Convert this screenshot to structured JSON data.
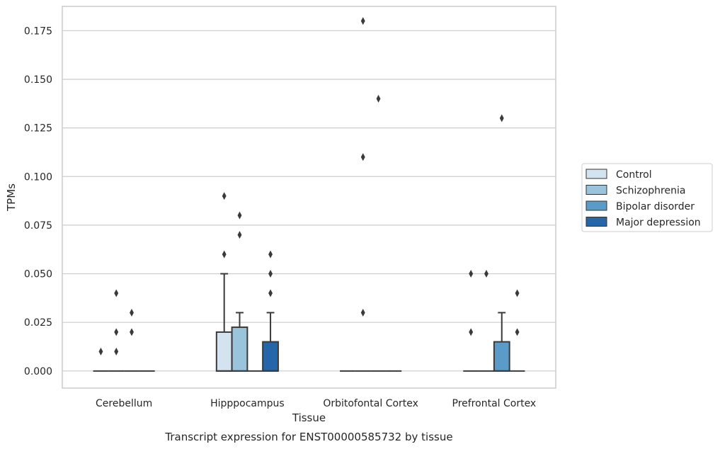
{
  "chart_data": {
    "type": "box",
    "caption": "Transcript expression for ENST00000585732 by tissue",
    "xlabel": "Tissue",
    "ylabel": "TPMs",
    "ylim": [
      -0.0088,
      0.1875
    ],
    "yticks": [
      0.0,
      0.025,
      0.05,
      0.075,
      0.1,
      0.125,
      0.15,
      0.175
    ],
    "ytick_labels": [
      "0.000",
      "0.025",
      "0.050",
      "0.075",
      "0.100",
      "0.125",
      "0.150",
      "0.175"
    ],
    "grid": "horizontal",
    "legend_position": "right",
    "categories": [
      "Cerebellum",
      "Hipppocampus",
      "Orbitofontal Cortex",
      "Prefrontal Cortex"
    ],
    "series": [
      {
        "name": "Control",
        "color": "#d4e3f0",
        "boxes": [
          {
            "q1": 0,
            "median": 0,
            "q3": 0,
            "whislo": 0,
            "whishi": 0,
            "fliers": [
              0.01
            ]
          },
          {
            "q1": 0,
            "median": 0,
            "q3": 0.02,
            "whislo": 0,
            "whishi": 0.05,
            "fliers": [
              0.06,
              0.09
            ]
          },
          {
            "q1": 0,
            "median": 0,
            "q3": 0,
            "whislo": 0,
            "whishi": 0,
            "fliers": []
          },
          {
            "q1": 0,
            "median": 0,
            "q3": 0,
            "whislo": 0,
            "whishi": 0,
            "fliers": [
              0.02,
              0.05
            ]
          }
        ]
      },
      {
        "name": "Schizophrenia",
        "color": "#9ac3dc",
        "boxes": [
          {
            "q1": 0,
            "median": 0,
            "q3": 0,
            "whislo": 0,
            "whishi": 0,
            "fliers": [
              0.01,
              0.02,
              0.04
            ]
          },
          {
            "q1": 0,
            "median": 0,
            "q3": 0.0225,
            "whislo": 0,
            "whishi": 0.03,
            "fliers": [
              0.07,
              0.08
            ]
          },
          {
            "q1": 0,
            "median": 0,
            "q3": 0,
            "whislo": 0,
            "whishi": 0,
            "fliers": [
              0.03,
              0.11,
              0.18
            ]
          },
          {
            "q1": 0,
            "median": 0,
            "q3": 0,
            "whislo": 0,
            "whishi": 0,
            "fliers": [
              0.05
            ]
          }
        ]
      },
      {
        "name": "Bipolar disorder",
        "color": "#5a9bc8",
        "boxes": [
          {
            "q1": 0,
            "median": 0,
            "q3": 0,
            "whislo": 0,
            "whishi": 0,
            "fliers": [
              0.02,
              0.03
            ]
          },
          {
            "q1": 0,
            "median": 0,
            "q3": 0,
            "whislo": 0,
            "whishi": 0,
            "fliers": []
          },
          {
            "q1": 0,
            "median": 0,
            "q3": 0,
            "whislo": 0,
            "whishi": 0,
            "fliers": [
              0.14
            ]
          },
          {
            "q1": 0,
            "median": 0,
            "q3": 0.015,
            "whislo": 0,
            "whishi": 0.03,
            "fliers": [
              0.13
            ]
          }
        ]
      },
      {
        "name": "Major depression",
        "color": "#2566a8",
        "boxes": [
          {
            "q1": 0,
            "median": 0,
            "q3": 0,
            "whislo": 0,
            "whishi": 0,
            "fliers": []
          },
          {
            "q1": 0,
            "median": 0,
            "q3": 0.015,
            "whislo": 0,
            "whishi": 0.03,
            "fliers": [
              0.04,
              0.05,
              0.06
            ]
          },
          {
            "q1": 0,
            "median": 0,
            "q3": 0,
            "whislo": 0,
            "whishi": 0,
            "fliers": []
          },
          {
            "q1": 0,
            "median": 0,
            "q3": 0,
            "whislo": 0,
            "whishi": 0,
            "fliers": [
              0.02,
              0.04
            ]
          }
        ]
      }
    ]
  }
}
